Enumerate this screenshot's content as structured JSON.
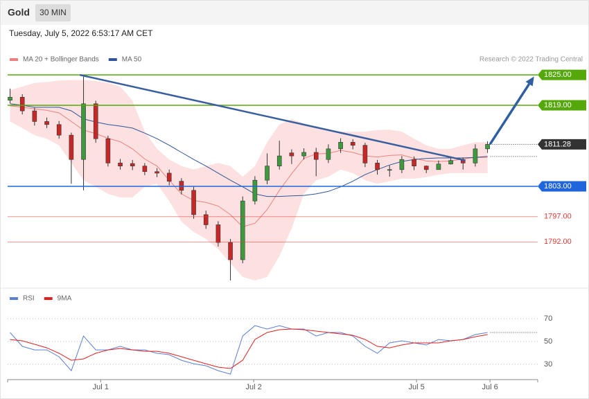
{
  "header": {
    "title": "Gold",
    "interval": "30 MIN",
    "timestamp": "Tuesday, July 5, 2022 6:53:17 AM CET"
  },
  "chart_data": [
    {
      "type": "candlestick",
      "credit": "Research © 2022 Trading Central",
      "x": [
        0,
        1,
        2,
        3,
        4,
        5,
        6,
        7,
        8,
        9,
        10,
        11,
        12,
        13,
        14,
        15,
        16,
        17,
        18,
        19,
        20,
        21,
        22,
        23,
        24,
        25,
        26,
        27,
        28,
        29,
        30,
        31,
        32,
        33,
        34,
        35,
        36,
        37,
        38,
        39
      ],
      "open": [
        1820.0,
        1820.6,
        1817.9,
        1815.8,
        1815.2,
        1813.1,
        1808.3,
        1819.3,
        1812.4,
        1807.6,
        1807.5,
        1807.0,
        1805.9,
        1805.6,
        1804.0,
        1802.2,
        1797.4,
        1795.4,
        1791.9,
        1788.5,
        1800.1,
        1804.2,
        1807.0,
        1809.6,
        1809.0,
        1809.7,
        1808.3,
        1810.4,
        1811.7,
        1811.1,
        1807.6,
        1806.3,
        1806.3,
        1808.3,
        1807.0,
        1806.3,
        1807.4,
        1808.1,
        1807.6,
        1810.4
      ],
      "high": [
        1822.3,
        1821.2,
        1818.5,
        1816.6,
        1815.9,
        1813.6,
        1825.0,
        1819.9,
        1813.0,
        1808.4,
        1808.2,
        1807.6,
        1806.6,
        1806.3,
        1804.6,
        1802.9,
        1798.2,
        1796.1,
        1792.6,
        1801.0,
        1805.0,
        1809.5,
        1812.0,
        1810.3,
        1810.5,
        1810.6,
        1811.3,
        1812.5,
        1812.3,
        1811.6,
        1808.2,
        1807.1,
        1809.0,
        1808.9,
        1807.1,
        1808.1,
        1808.9,
        1808.7,
        1811.3,
        1811.9
      ],
      "low": [
        1819.4,
        1817.2,
        1815.0,
        1814.5,
        1812.4,
        1803.5,
        1802.2,
        1811.6,
        1806.9,
        1806.3,
        1806.2,
        1805.2,
        1804.8,
        1803.2,
        1801.4,
        1796.6,
        1794.6,
        1791.1,
        1784.4,
        1787.8,
        1799.4,
        1803.4,
        1806.3,
        1807.4,
        1808.3,
        1805.0,
        1807.6,
        1809.6,
        1810.3,
        1806.8,
        1805.3,
        1804.9,
        1805.6,
        1806.2,
        1805.6,
        1806.5,
        1807.3,
        1806.3,
        1806.9,
        1809.6
      ],
      "close": [
        1820.6,
        1817.9,
        1815.8,
        1815.2,
        1813.1,
        1808.3,
        1819.3,
        1812.4,
        1807.6,
        1807.0,
        1807.0,
        1805.9,
        1805.6,
        1804.0,
        1802.2,
        1797.4,
        1795.4,
        1791.9,
        1788.5,
        1800.1,
        1804.2,
        1807.0,
        1809.0,
        1809.0,
        1809.7,
        1808.3,
        1810.4,
        1811.7,
        1811.1,
        1807.6,
        1806.3,
        1806.3,
        1808.3,
        1807.0,
        1806.3,
        1807.4,
        1808.1,
        1807.6,
        1810.4,
        1811.28
      ],
      "up_color": "#3f9a3f",
      "down_color": "#c62828",
      "series": [
        {
          "name": "MA 20 + Bollinger Bands",
          "color": "#f08080",
          "band_color": "#fde0e0",
          "values": [
            1818.9,
            1818.6,
            1818.3,
            1818.0,
            1817.5,
            1815.8,
            1814.1,
            1813.4,
            1812.5,
            1811.8,
            1810.4,
            1808.4,
            1807.0,
            1804.2,
            1801.5,
            1800.2,
            1799.8,
            1799.1,
            1797.4,
            1795.0,
            1795.7,
            1798.4,
            1802.2,
            1805.5,
            1808.5,
            1809.4,
            1809.5,
            1810.1,
            1809.7,
            1809.0,
            1808.8,
            1809.1,
            1809.2,
            1808.5,
            1808.0,
            1807.9,
            1808.0,
            1808.4,
            1808.7,
            1808.7
          ],
          "upper": [
            1822.0,
            1822.7,
            1823.4,
            1823.6,
            1823.9,
            1824.0,
            1824.0,
            1823.8,
            1823.4,
            1822.7,
            1819.9,
            1813.8,
            1810.4,
            1808.3,
            1807.0,
            1806.3,
            1807.0,
            1807.6,
            1807.0,
            1804.9,
            1807.0,
            1811.7,
            1815.2,
            1816.3,
            1815.4,
            1814.5,
            1814.1,
            1813.8,
            1813.8,
            1813.8,
            1814.1,
            1814.2,
            1813.8,
            1812.4,
            1811.1,
            1810.4,
            1810.4,
            1811.1,
            1811.7,
            1811.7
          ],
          "lower": [
            1815.8,
            1814.5,
            1813.1,
            1812.4,
            1811.1,
            1807.6,
            1804.2,
            1802.9,
            1801.5,
            1800.8,
            1800.8,
            1802.9,
            1803.5,
            1800.1,
            1796.0,
            1794.0,
            1792.6,
            1790.6,
            1787.8,
            1785.1,
            1784.4,
            1785.1,
            1789.2,
            1794.7,
            1801.5,
            1804.2,
            1804.9,
            1806.3,
            1805.6,
            1804.2,
            1803.5,
            1804.0,
            1804.5,
            1804.5,
            1804.8,
            1805.3,
            1805.6,
            1805.6,
            1805.6,
            1805.6
          ]
        },
        {
          "name": "MA 50",
          "color": "#2f5597",
          "values": [
            1819.3,
            1819.0,
            1818.6,
            1818.6,
            1818.6,
            1817.9,
            1816.3,
            1815.7,
            1815.2,
            1814.9,
            1814.5,
            1813.5,
            1812.4,
            1811.1,
            1809.7,
            1808.3,
            1807.0,
            1805.6,
            1804.2,
            1802.9,
            1801.5,
            1801.0,
            1801.0,
            1801.1,
            1801.2,
            1801.5,
            1802.0,
            1802.9,
            1804.0,
            1805.3,
            1806.3,
            1807.2,
            1807.9,
            1808.3,
            1808.5,
            1808.6,
            1808.6,
            1808.6,
            1808.7,
            1808.9
          ]
        }
      ],
      "levels": [
        {
          "value": 1825,
          "label": "1825.00",
          "color": "#55a80a",
          "style": "box"
        },
        {
          "value": 1819,
          "label": "1819.00",
          "color": "#55a80a",
          "style": "box"
        },
        {
          "value": 1811.28,
          "color": "#333333",
          "style": "current"
        },
        {
          "value": 1803,
          "label": "1803.00",
          "color": "#1f66dd",
          "style": "box"
        },
        {
          "value": 1797,
          "label": "1797.00",
          "color": "#e53935",
          "style": "text"
        },
        {
          "value": 1792,
          "label": "1792.00",
          "color": "#e53935",
          "style": "text"
        }
      ],
      "trendline": {
        "color": "#3a5f9f",
        "x": [
          5.7,
          37.2
        ],
        "y": [
          1825,
          1808.1
        ]
      },
      "forecast_arrow": {
        "color": "#2f5fa0",
        "x": [
          39.2,
          42.8
        ],
        "y": [
          1811.3,
          1824.7
        ]
      },
      "xlim": [
        -0.2,
        43.1
      ],
      "ylim": [
        1783.7,
        1826.8
      ]
    },
    {
      "type": "line",
      "x": [
        0,
        1,
        2,
        3,
        4,
        5,
        6,
        7,
        8,
        9,
        10,
        11,
        12,
        13,
        14,
        15,
        16,
        17,
        18,
        19,
        20,
        21,
        22,
        23,
        24,
        25,
        26,
        27,
        28,
        29,
        30,
        31,
        32,
        33,
        34,
        35,
        36,
        37,
        38,
        39
      ],
      "series": [
        {
          "name": "RSI",
          "color": "#5b7fd6",
          "values": [
            57.9,
            45.8,
            42.7,
            42.7,
            36.7,
            24.5,
            54.8,
            42.7,
            42.7,
            45.8,
            42.7,
            42.7,
            39.7,
            38.5,
            33.6,
            30.6,
            28.8,
            24.5,
            21.5,
            54.8,
            63.9,
            60.9,
            63.9,
            60.9,
            60.9,
            54.8,
            57.9,
            57.9,
            54.8,
            45.8,
            39.7,
            48.8,
            50.6,
            48.8,
            47.0,
            51.8,
            50.6,
            51.8,
            56.1,
            57.9
          ]
        },
        {
          "name": "9MA",
          "color": "#e02020",
          "values": [
            51.8,
            50.6,
            47.6,
            44.5,
            39.7,
            33.6,
            34.8,
            39.7,
            42.7,
            43.9,
            42.7,
            41.5,
            41.5,
            39.7,
            36.7,
            33.6,
            30.6,
            27.6,
            26.4,
            33.6,
            51.8,
            57.9,
            60.3,
            60.9,
            60.3,
            59.1,
            57.9,
            56.7,
            55.5,
            51.8,
            45.8,
            44.5,
            47.0,
            48.8,
            48.8,
            48.8,
            50.6,
            51.8,
            54.2,
            56.1
          ]
        }
      ],
      "xlim": [
        -0.2,
        43.1
      ],
      "ylim": [
        16.7,
        79.1
      ],
      "yticks": [
        30,
        50,
        70
      ],
      "xticks": [
        {
          "value": 7.4,
          "label": "Jul 1"
        },
        {
          "value": 19.9,
          "label": "Jul 2"
        },
        {
          "value": 33.2,
          "label": "Jul 5"
        },
        {
          "value": 39.2,
          "label": "Jul 6"
        }
      ]
    }
  ]
}
